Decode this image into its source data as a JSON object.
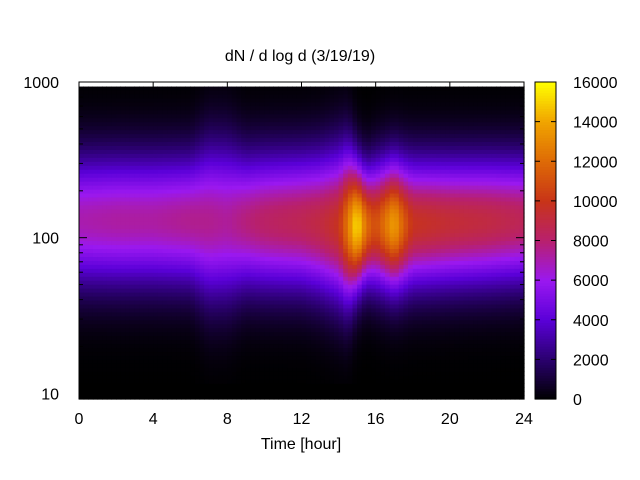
{
  "chart_data": {
    "type": "heatmap",
    "title": "dN / d log d (3/19/19)",
    "xlabel": "Time [hour]",
    "ylabel": "",
    "xlim": [
      0,
      24
    ],
    "ylim": [
      9.2,
      1000
    ],
    "y_scale": "log",
    "x_ticks": [
      0,
      4,
      8,
      12,
      16,
      20,
      24
    ],
    "x_tick_labels": [
      "0",
      "4",
      "8",
      "12",
      "16",
      "20",
      "24"
    ],
    "y_ticks": [
      10,
      100,
      1000
    ],
    "y_tick_labels": [
      "10",
      "100",
      "1000"
    ],
    "colorbar": {
      "range": [
        0,
        16000
      ],
      "ticks": [
        0,
        2000,
        4000,
        6000,
        8000,
        10000,
        12000,
        14000,
        16000
      ],
      "tick_labels": [
        "0",
        "2000",
        "4000",
        "6000",
        "8000",
        "10000",
        "12000",
        "14000",
        "16000"
      ],
      "colormap": [
        "#000000",
        "#2a006e",
        "#5a00d8",
        "#9a18f0",
        "#b8206e",
        "#c83418",
        "#de6a06",
        "#f0a400",
        "#ffff00"
      ]
    },
    "grid": false,
    "legend": "colorbar-right",
    "time_hours": [
      0,
      2,
      4,
      6,
      7,
      8,
      9,
      10,
      12,
      13,
      14,
      14.5,
      15,
      15.5,
      16,
      17,
      17.5,
      18,
      20,
      22,
      24
    ],
    "peak_diameter": [
      130,
      130,
      130,
      130,
      128,
      128,
      128,
      128,
      128,
      125,
      122,
      120,
      120,
      120,
      122,
      122,
      122,
      124,
      126,
      128,
      130
    ],
    "peak_value": [
      7000,
      7200,
      7200,
      7500,
      7500,
      7300,
      7800,
      8200,
      8600,
      9000,
      9800,
      12500,
      15500,
      12000,
      10800,
      13800,
      11500,
      9800,
      9300,
      9000,
      8500
    ],
    "distribution_width": [
      0.29,
      0.29,
      0.29,
      0.29,
      0.34,
      0.34,
      0.3,
      0.3,
      0.3,
      0.31,
      0.33,
      0.33,
      0.27,
      0.25,
      0.27,
      0.28,
      0.28,
      0.28,
      0.28,
      0.28,
      0.28
    ]
  }
}
